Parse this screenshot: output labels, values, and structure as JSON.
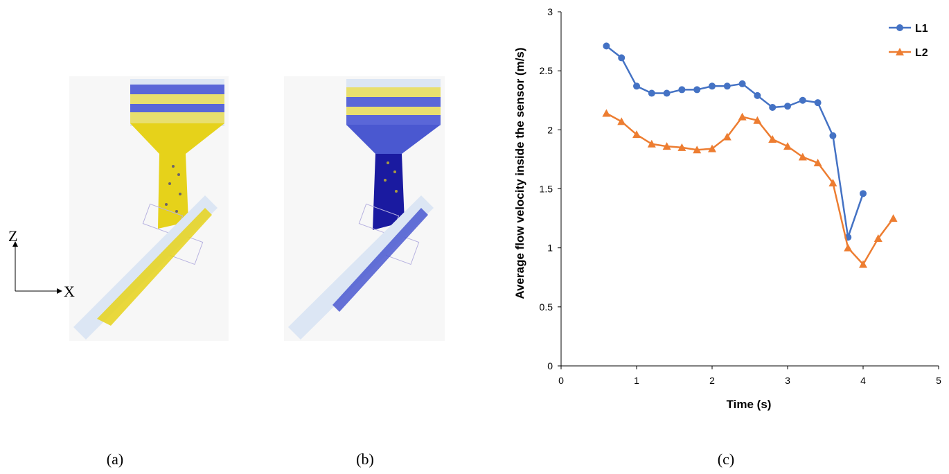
{
  "captions": {
    "a": "(a)",
    "b": "(b)",
    "c": "(c)"
  },
  "axes_indicator": {
    "z": "Z",
    "x": "X"
  },
  "colors": {
    "L1": "#4472C4",
    "L2": "#ED7D31",
    "blue_band": "#5a67d8",
    "yellow_band": "#e8df6e",
    "particles_yellow": "#e6d21a",
    "particles_blue": "#1a1aa0"
  },
  "chart_data": {
    "type": "line",
    "xlabel": "Time (s)",
    "ylabel": "Average flow velocity inside the sensor (m/s)",
    "xlim": [
      0,
      5
    ],
    "ylim": [
      0,
      3
    ],
    "xticks": [
      "0",
      "1",
      "2",
      "3",
      "4",
      "5"
    ],
    "yticks": [
      "0",
      "0.5",
      "1",
      "1.5",
      "2",
      "2.5",
      "3"
    ],
    "legend_position": "top-right",
    "series": [
      {
        "name": "L1",
        "marker": "circle",
        "x": [
          0.6,
          0.8,
          1.0,
          1.2,
          1.4,
          1.6,
          1.8,
          2.0,
          2.2,
          2.4,
          2.6,
          2.8,
          3.0,
          3.2,
          3.4,
          3.6,
          3.8,
          4.0
        ],
        "y": [
          2.71,
          2.61,
          2.37,
          2.31,
          2.31,
          2.34,
          2.34,
          2.37,
          2.37,
          2.39,
          2.29,
          2.19,
          2.2,
          2.25,
          2.23,
          1.95,
          1.09,
          1.46
        ]
      },
      {
        "name": "L2",
        "marker": "triangle",
        "x": [
          0.6,
          0.8,
          1.0,
          1.2,
          1.4,
          1.6,
          1.8,
          2.0,
          2.2,
          2.4,
          2.6,
          2.8,
          3.0,
          3.2,
          3.4,
          3.6,
          3.8,
          4.0,
          4.2,
          4.4
        ],
        "y": [
          2.14,
          2.07,
          1.96,
          1.88,
          1.86,
          1.85,
          1.83,
          1.84,
          1.94,
          2.11,
          2.08,
          1.92,
          1.86,
          1.77,
          1.72,
          1.55,
          1.0,
          0.86,
          1.08,
          1.25
        ]
      }
    ]
  }
}
